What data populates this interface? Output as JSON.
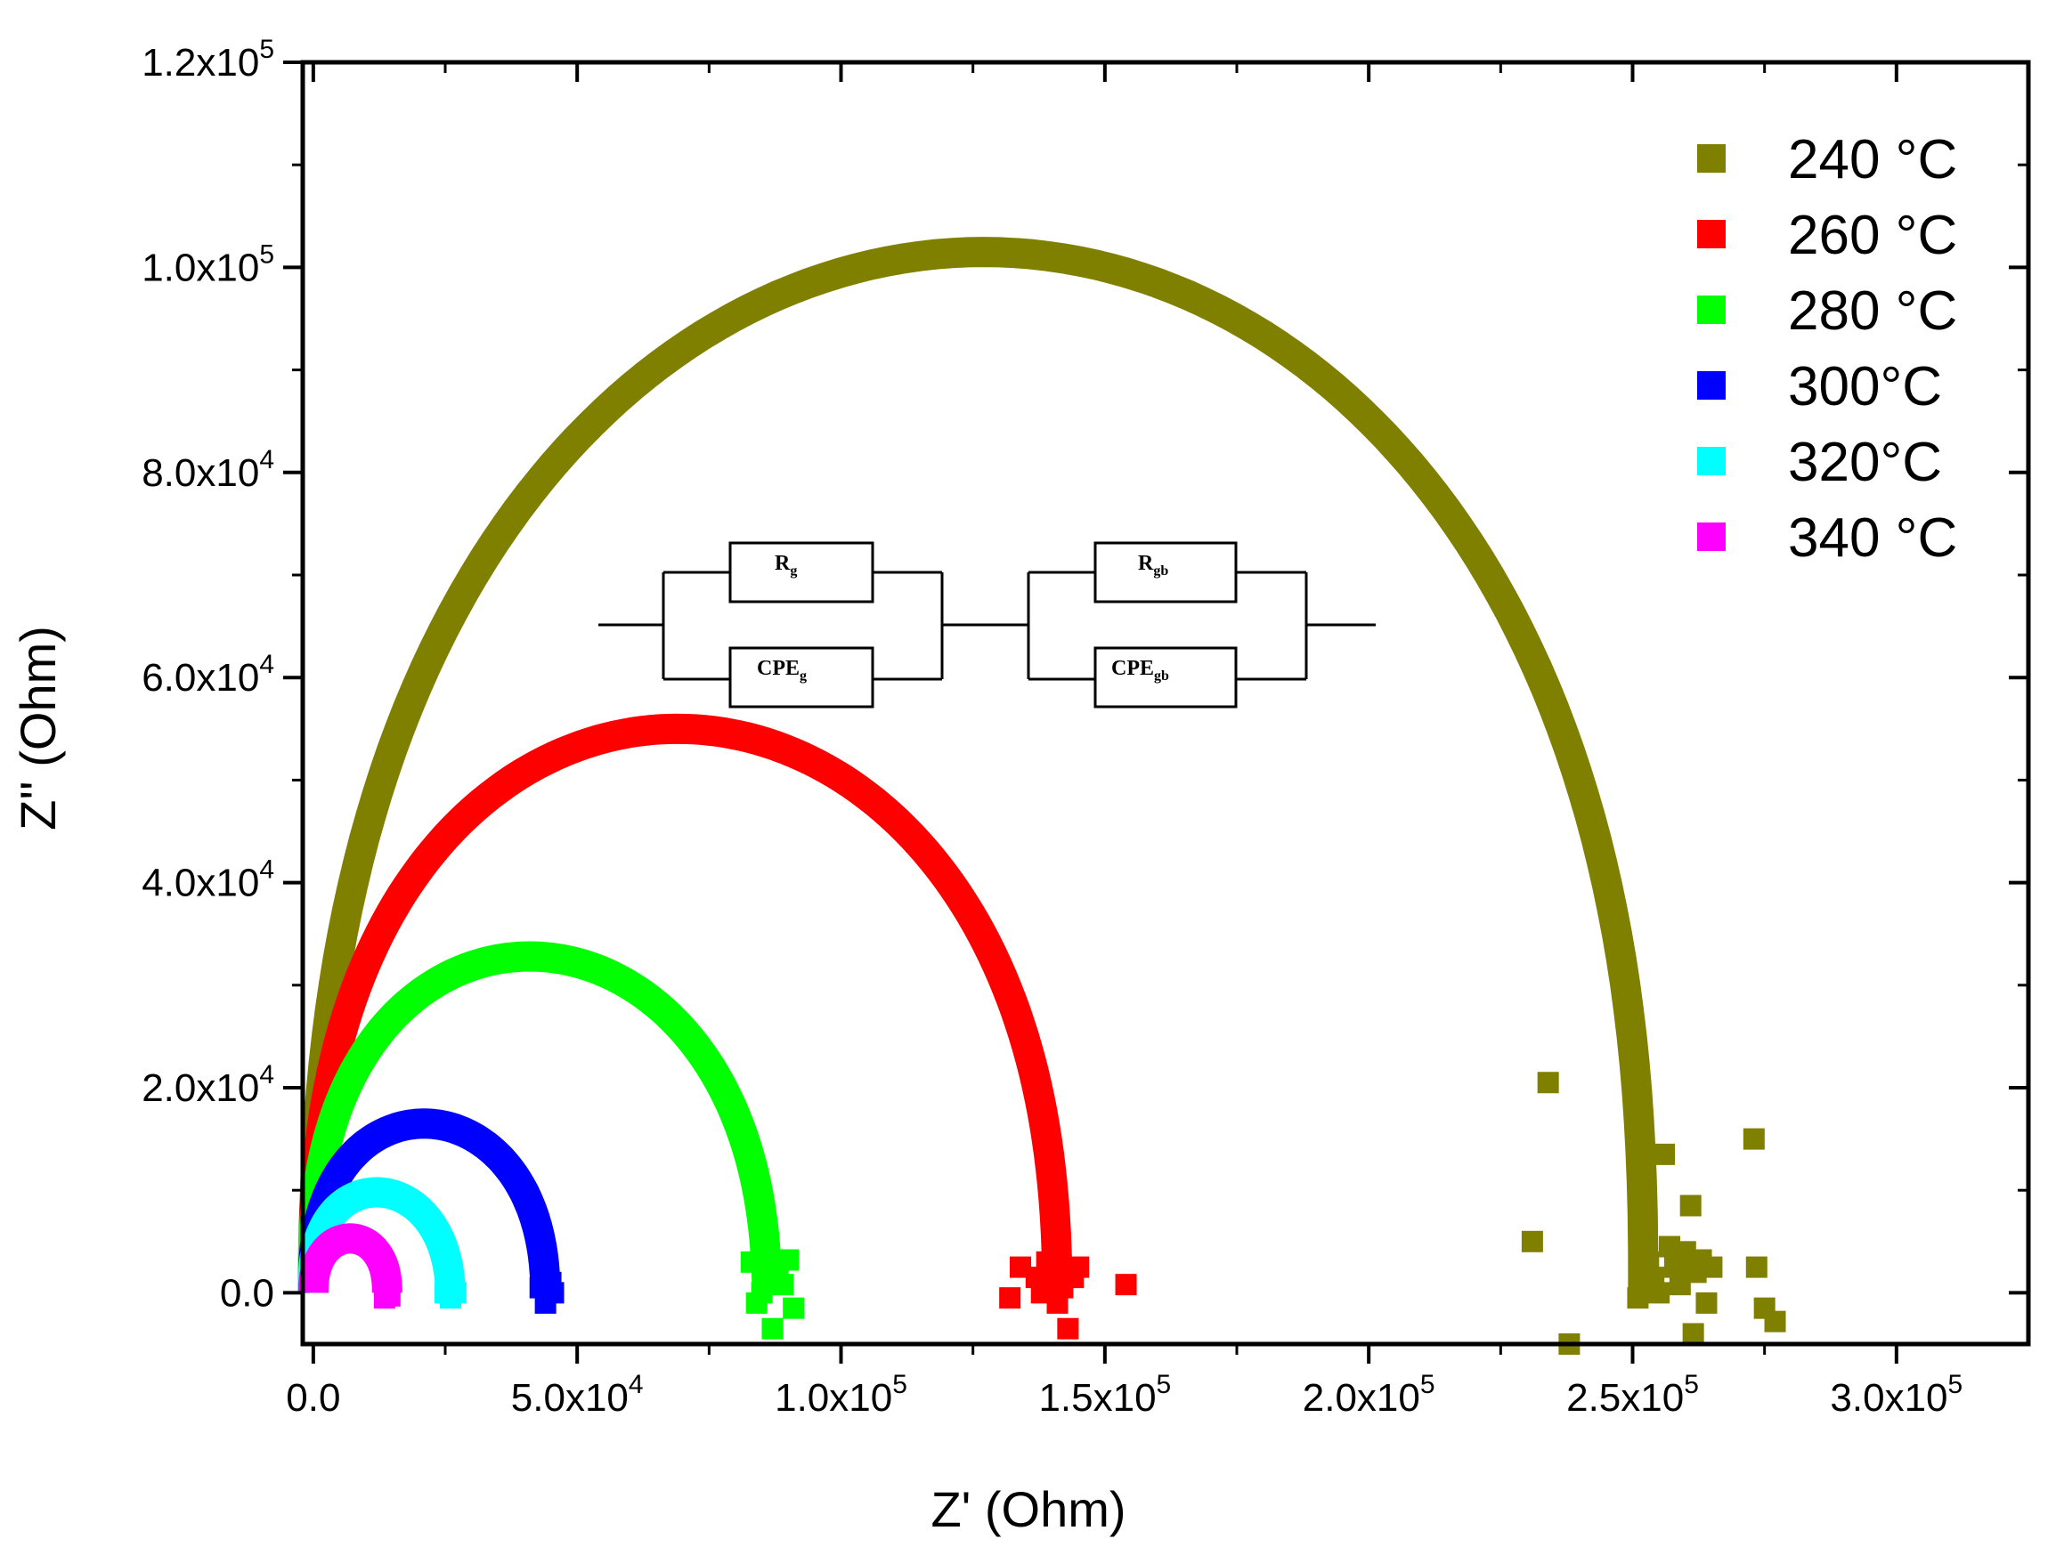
{
  "chart_data": {
    "type": "scatter",
    "xlabel": "Z' (Ohm)",
    "ylabel": "Z'' (Ohm)",
    "xlim": [
      -2000,
      325000
    ],
    "ylim": [
      -5000,
      120000
    ],
    "x_ticks": [
      {
        "value": 0,
        "mantissa": "0.0",
        "exp": ""
      },
      {
        "value": 50000,
        "mantissa": "5.0x10",
        "exp": "4"
      },
      {
        "value": 100000,
        "mantissa": "1.0x10",
        "exp": "5"
      },
      {
        "value": 150000,
        "mantissa": "1.5x10",
        "exp": "5"
      },
      {
        "value": 200000,
        "mantissa": "2.0x10",
        "exp": "5"
      },
      {
        "value": 250000,
        "mantissa": "2.5x10",
        "exp": "5"
      },
      {
        "value": 300000,
        "mantissa": "3.0x10",
        "exp": "5"
      }
    ],
    "y_ticks": [
      {
        "value": 0,
        "mantissa": "0.0",
        "exp": ""
      },
      {
        "value": 20000,
        "mantissa": "2.0x10",
        "exp": "4"
      },
      {
        "value": 40000,
        "mantissa": "4.0x10",
        "exp": "4"
      },
      {
        "value": 60000,
        "mantissa": "6.0x10",
        "exp": "4"
      },
      {
        "value": 80000,
        "mantissa": "8.0x10",
        "exp": "4"
      },
      {
        "value": 100000,
        "mantissa": "1.0x10",
        "exp": "5"
      },
      {
        "value": 120000,
        "mantissa": "1.2x10",
        "exp": "5"
      }
    ],
    "grid": false,
    "legend_position": "top-right",
    "marker": "square",
    "series": [
      {
        "name": "240 °C",
        "color": "#808000",
        "arc": {
          "x_start": 0,
          "x_end": 252000,
          "peak_x": 127000,
          "peak_y": 101500
        },
        "scatter": [
          [
            231000,
            5000
          ],
          [
            234000,
            20500
          ],
          [
            238000,
            -5000
          ],
          [
            251000,
            -500
          ],
          [
            254000,
            1500
          ],
          [
            256000,
            13500
          ],
          [
            257000,
            4500
          ],
          [
            258000,
            2500
          ],
          [
            259000,
            800
          ],
          [
            260000,
            4000
          ],
          [
            261000,
            8500
          ],
          [
            261500,
            -4000
          ],
          [
            262000,
            2000
          ],
          [
            263000,
            3200
          ],
          [
            264000,
            -1000
          ],
          [
            265000,
            2500
          ],
          [
            273000,
            15000
          ],
          [
            273500,
            2500
          ],
          [
            275000,
            -1500
          ],
          [
            277000,
            -2800
          ],
          [
            255000,
            0
          ],
          [
            253000,
            3000
          ]
        ]
      },
      {
        "name": "260 °C",
        "color": "#ff0000",
        "arc": {
          "x_start": 0,
          "x_end": 141000,
          "peak_x": 69000,
          "peak_y": 55000
        },
        "scatter": [
          [
            132000,
            -500
          ],
          [
            134000,
            2500
          ],
          [
            137000,
            1500
          ],
          [
            139000,
            3000
          ],
          [
            140000,
            10000
          ],
          [
            141000,
            -1000
          ],
          [
            142000,
            500
          ],
          [
            143000,
            -3500
          ],
          [
            144000,
            1500
          ],
          [
            145000,
            2500
          ],
          [
            154000,
            800
          ],
          [
            138000,
            0
          ]
        ]
      },
      {
        "name": "280 °C",
        "color": "#00ff00",
        "arc": {
          "x_start": 0,
          "x_end": 86000,
          "peak_x": 41000,
          "peak_y": 32800
        },
        "scatter": [
          [
            83000,
            3000
          ],
          [
            84000,
            -1000
          ],
          [
            86000,
            3500
          ],
          [
            87000,
            -3500
          ],
          [
            88000,
            2000
          ],
          [
            89000,
            800
          ],
          [
            90000,
            3200
          ],
          [
            91000,
            -1500
          ],
          [
            85000,
            0
          ]
        ]
      },
      {
        "name": "300°C",
        "color": "#0000ff",
        "arc": {
          "x_start": 0,
          "x_end": 44000,
          "peak_x": 21000,
          "peak_y": 16500
        },
        "scatter": [
          [
            43000,
            500
          ],
          [
            44000,
            -1000
          ],
          [
            45000,
            1000
          ],
          [
            45500,
            0
          ]
        ]
      },
      {
        "name": "320°C",
        "color": "#00ffff",
        "arc": {
          "x_start": 0,
          "x_end": 26000,
          "peak_x": 12000,
          "peak_y": 9800
        },
        "scatter": [
          [
            25000,
            0
          ],
          [
            26000,
            -500
          ],
          [
            27000,
            0
          ]
        ]
      },
      {
        "name": "340 °C",
        "color": "#ff00ff",
        "arc": {
          "x_start": 0,
          "x_end": 14000,
          "peak_x": 7000,
          "peak_y": 5300
        },
        "scatter": [
          [
            13500,
            -500
          ],
          [
            14500,
            -300
          ]
        ]
      }
    ],
    "annotations": {
      "circuit": {
        "element1": {
          "base": "R",
          "sub": "g"
        },
        "element2": {
          "base": "CPE",
          "sub": "g"
        },
        "element3": {
          "base": "R",
          "sub": "gb"
        },
        "element4": {
          "base": "CPE",
          "sub": "gb"
        }
      }
    }
  }
}
